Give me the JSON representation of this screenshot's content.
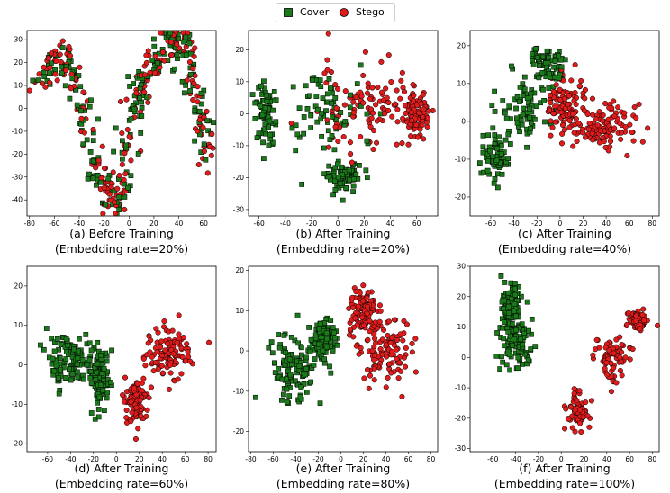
{
  "legend": {
    "items": [
      {
        "label": "Cover",
        "marker": "square",
        "color": "#1a7a1a"
      },
      {
        "label": "Stego",
        "marker": "circle",
        "color": "#e01b1b"
      }
    ]
  },
  "colors": {
    "cover": "#1a7a1a",
    "stego": "#e01b1b",
    "edge": "#000000"
  },
  "chart_data": [
    {
      "type": "scatter",
      "caption_line1": "(a) Before Training",
      "caption_line2": "(Embedding rate=20%)",
      "xlim": [
        -82,
        70
      ],
      "ylim": [
        -47,
        34
      ],
      "xticks": [
        -80,
        -60,
        -40,
        -20,
        0,
        20,
        40,
        60
      ],
      "yticks": [
        -40,
        -30,
        -20,
        -10,
        0,
        10,
        20,
        30
      ],
      "series": [
        {
          "name": "Cover",
          "marker": "square",
          "mixed_with": "Stego",
          "segments": [
            [
              -73,
              10
            ],
            [
              -65,
              18
            ],
            [
              -55,
              22
            ],
            [
              -48,
              18
            ],
            [
              -42,
              8
            ],
            [
              -36,
              -4
            ],
            [
              -32,
              -15
            ],
            [
              -26,
              -26
            ],
            [
              -20,
              -35
            ],
            [
              -14,
              -42
            ],
            [
              -8,
              -38
            ],
            [
              -4,
              -28
            ],
            [
              0,
              -16
            ],
            [
              3,
              -5
            ],
            [
              6,
              6
            ],
            [
              12,
              14
            ],
            [
              20,
              20
            ],
            [
              28,
              26
            ],
            [
              36,
              31
            ],
            [
              44,
              28
            ],
            [
              50,
              16
            ],
            [
              55,
              2
            ],
            [
              60,
              -12
            ],
            [
              64,
              -23
            ]
          ],
          "jitter": 4
        },
        {
          "name": "Stego",
          "marker": "circle",
          "mixed_with": "Cover",
          "segments": [
            [
              -73,
              10
            ],
            [
              -65,
              18
            ],
            [
              -55,
              22
            ],
            [
              -48,
              18
            ],
            [
              -42,
              8
            ],
            [
              -36,
              -4
            ],
            [
              -32,
              -15
            ],
            [
              -26,
              -26
            ],
            [
              -20,
              -35
            ],
            [
              -14,
              -42
            ],
            [
              -8,
              -38
            ],
            [
              -4,
              -28
            ],
            [
              0,
              -16
            ],
            [
              3,
              -5
            ],
            [
              6,
              6
            ],
            [
              12,
              14
            ],
            [
              20,
              20
            ],
            [
              28,
              26
            ],
            [
              36,
              31
            ],
            [
              44,
              28
            ],
            [
              50,
              16
            ],
            [
              55,
              2
            ],
            [
              60,
              -12
            ],
            [
              64,
              -23
            ]
          ],
          "jitter": 4
        }
      ]
    },
    {
      "type": "scatter",
      "caption_line1": "(b) After Training",
      "caption_line2": "(Embedding rate=20%)",
      "xlim": [
        -68,
        76
      ],
      "ylim": [
        -32,
        26
      ],
      "xticks": [
        -60,
        -40,
        -20,
        0,
        20,
        40,
        60
      ],
      "yticks": [
        -30,
        -20,
        -10,
        0,
        10,
        20
      ],
      "series": [
        {
          "name": "Cover",
          "marker": "square",
          "blobs": [
            {
              "cx": -10,
              "cy": 2,
              "sx": 28,
              "sy": 13
            },
            {
              "cx": -55,
              "cy": 0,
              "sx": 8,
              "sy": 9
            },
            {
              "cx": 5,
              "cy": -20,
              "sx": 14,
              "sy": 4
            }
          ]
        },
        {
          "name": "Stego",
          "marker": "circle",
          "blobs": [
            {
              "cx": 20,
              "cy": 2,
              "sx": 32,
              "sy": 12
            },
            {
              "cx": 60,
              "cy": 0,
              "sx": 9,
              "sy": 6
            }
          ]
        }
      ]
    },
    {
      "type": "scatter",
      "caption_line1": "(c) After Training",
      "caption_line2": "(Embedding rate=40%)",
      "xlim": [
        -78,
        86
      ],
      "ylim": [
        -25,
        24
      ],
      "xticks": [
        -60,
        -40,
        -20,
        0,
        20,
        40,
        60,
        80
      ],
      "yticks": [
        -20,
        -10,
        0,
        10,
        20
      ],
      "series": [
        {
          "name": "Cover",
          "marker": "square",
          "blobs": [
            {
              "cx": -28,
              "cy": 4,
              "sx": 22,
              "sy": 8
            },
            {
              "cx": -55,
              "cy": -9,
              "sx": 10,
              "sy": 6
            },
            {
              "cx": -10,
              "cy": 15,
              "sx": 14,
              "sy": 4
            }
          ]
        },
        {
          "name": "Stego",
          "marker": "circle",
          "blobs": [
            {
              "cx": 38,
              "cy": -2,
              "sx": 22,
              "sy": 6
            },
            {
              "cx": 5,
              "cy": 4,
              "sx": 15,
              "sy": 7
            }
          ]
        }
      ]
    },
    {
      "type": "scatter",
      "caption_line1": "(d) After Training",
      "caption_line2": "(Embedding rate=60%)",
      "xlim": [
        -78,
        87
      ],
      "ylim": [
        -22,
        25
      ],
      "xticks": [
        -60,
        -40,
        -20,
        0,
        20,
        40,
        60,
        80
      ],
      "yticks": [
        -20,
        -10,
        0,
        10,
        20
      ],
      "series": [
        {
          "name": "Cover",
          "marker": "square",
          "blobs": [
            {
              "cx": -40,
              "cy": 1,
              "sx": 18,
              "sy": 7
            },
            {
              "cx": -15,
              "cy": -3,
              "sx": 8,
              "sy": 7
            }
          ]
        },
        {
          "name": "Stego",
          "marker": "circle",
          "blobs": [
            {
              "cx": 45,
              "cy": 3,
              "sx": 17,
              "sy": 6
            },
            {
              "cx": 18,
              "cy": -9,
              "sx": 9,
              "sy": 6
            }
          ]
        }
      ]
    },
    {
      "type": "scatter",
      "caption_line1": "(e) After Training",
      "caption_line2": "(Embedding rate=80%)",
      "xlim": [
        -82,
        86
      ],
      "ylim": [
        -25,
        21
      ],
      "xticks": [
        -80,
        -60,
        -40,
        -20,
        0,
        20,
        40,
        60,
        80
      ],
      "yticks": [
        -20,
        -10,
        0,
        10,
        20
      ],
      "series": [
        {
          "name": "Cover",
          "marker": "square",
          "blobs": [
            {
              "cx": -42,
              "cy": -5,
              "sx": 18,
              "sy": 7
            },
            {
              "cx": -15,
              "cy": 3,
              "sx": 10,
              "sy": 5
            }
          ]
        },
        {
          "name": "Stego",
          "marker": "circle",
          "blobs": [
            {
              "cx": 40,
              "cy": 0,
              "sx": 20,
              "sy": 8
            },
            {
              "cx": 20,
              "cy": 10,
              "sx": 12,
              "sy": 5
            }
          ]
        }
      ]
    },
    {
      "type": "scatter",
      "caption_line1": "(f) After Training",
      "caption_line2": "(Embedding rate=100%)",
      "xlim": [
        -80,
        86
      ],
      "ylim": [
        -31,
        30
      ],
      "xticks": [
        -60,
        -40,
        -20,
        0,
        20,
        40,
        60,
        80
      ],
      "yticks": [
        -30,
        -20,
        -10,
        0,
        10,
        20,
        30
      ],
      "series": [
        {
          "name": "Cover",
          "marker": "square",
          "blobs": [
            {
              "cx": -40,
              "cy": 5,
              "sx": 15,
              "sy": 9
            },
            {
              "cx": -45,
              "cy": 18,
              "sx": 6,
              "sy": 5
            }
          ]
        },
        {
          "name": "Stego",
          "marker": "circle",
          "blobs": [
            {
              "cx": 15,
              "cy": -18,
              "sx": 9,
              "sy": 5
            },
            {
              "cx": 45,
              "cy": 0,
              "sx": 13,
              "sy": 7
            },
            {
              "cx": 68,
              "cy": 12,
              "sx": 7,
              "sy": 3
            }
          ]
        }
      ]
    }
  ]
}
